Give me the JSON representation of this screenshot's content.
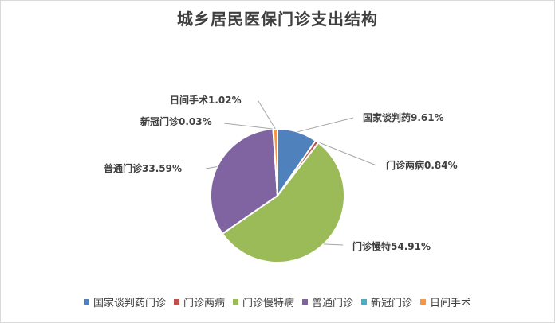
{
  "chart_data": {
    "type": "pie",
    "title": "城乡居民医保门诊支出结构",
    "categories": [
      "国家谈判药门诊",
      "门诊两病",
      "门诊慢特病",
      "普通门诊",
      "新冠门诊",
      "日间手术"
    ],
    "values": [
      9.61,
      0.84,
      54.91,
      33.59,
      0.03,
      1.02
    ],
    "data_labels": [
      "国家谈判药9.61%",
      "门诊两病0.84%",
      "门诊慢特54.91%",
      "普通门诊33.59%",
      "新冠门诊0.03%",
      "日间手术1.02%"
    ],
    "colors": [
      "#4f81bd",
      "#c0504d",
      "#9bbb59",
      "#8064a2",
      "#4bacc6",
      "#f79646"
    ],
    "legend_position": "bottom"
  }
}
